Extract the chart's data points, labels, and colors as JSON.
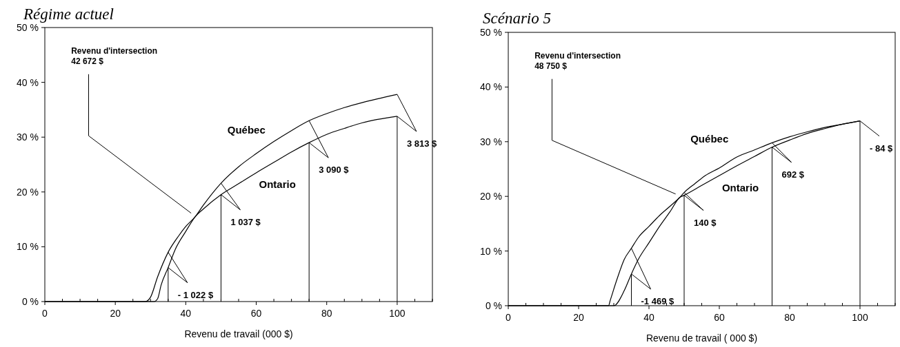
{
  "chart_data": [
    {
      "type": "line",
      "title": "Régime actuel",
      "xlabel": "Revenu de travail (000 $)",
      "xlim": [
        0,
        110
      ],
      "ylim": [
        0,
        50
      ],
      "xticks": [
        0,
        {
          "value": 5,
          "label": null
        },
        {
          "value": 10,
          "label": null
        },
        {
          "value": 15,
          "label": null
        },
        20,
        {
          "value": 25,
          "label": null
        },
        {
          "value": 30,
          "label": null
        },
        {
          "value": 35,
          "label": null
        },
        40,
        {
          "value": 45,
          "label": null
        },
        {
          "value": 50,
          "label": null
        },
        {
          "value": 55,
          "label": null
        },
        60,
        {
          "value": 65,
          "label": null
        },
        {
          "value": 70,
          "label": null
        },
        {
          "value": 75,
          "label": null
        },
        80,
        {
          "value": 85,
          "label": null
        },
        {
          "value": 90,
          "label": null
        },
        {
          "value": 95,
          "label": null
        },
        100,
        {
          "value": 105,
          "label": null
        },
        {
          "value": 110,
          "label": null
        }
      ],
      "yticks": [
        {
          "value": 0,
          "label": "0 %"
        },
        {
          "value": 10,
          "label": "10 %"
        },
        {
          "value": 20,
          "label": "20 %"
        },
        {
          "value": 30,
          "label": "30 %"
        },
        {
          "value": 40,
          "label": "40 %"
        },
        {
          "value": 50,
          "label": "50 %"
        }
      ],
      "series": [
        {
          "name": "Québec",
          "color": "#000000",
          "x": [
            0,
            28.5,
            30,
            32,
            35,
            38,
            40,
            42.7,
            45,
            50,
            55,
            60,
            65,
            70,
            75,
            80,
            85,
            90,
            100
          ],
          "values": [
            0,
            0,
            0.8,
            4.5,
            9,
            12,
            13.7,
            15.5,
            17.6,
            21.6,
            24.6,
            27,
            29.2,
            31.2,
            33,
            34.3,
            35.4,
            36.3,
            37.8
          ]
        },
        {
          "name": "Ontario",
          "color": "#000000",
          "x": [
            0,
            31,
            32,
            33,
            35,
            37,
            40,
            42.7,
            45,
            50,
            55,
            60,
            65,
            70,
            75,
            80,
            85,
            90,
            100
          ],
          "values": [
            0,
            0,
            0.5,
            3,
            6.2,
            9.5,
            12.8,
            15.5,
            16.9,
            19.5,
            21.5,
            23.5,
            25.4,
            27.3,
            29,
            30.5,
            31.6,
            32.6,
            33.8
          ]
        }
      ],
      "ref_lines": [
        {
          "axis": "x",
          "value": 35
        },
        {
          "axis": "x",
          "value": 50
        },
        {
          "axis": "x",
          "value": 75
        },
        {
          "axis": "x",
          "value": 100
        }
      ],
      "annotations": [
        {
          "text": "Revenu d'intersection\n42 672 $",
          "x": 42.7,
          "y": 15.5
        },
        {
          "text": "- 1 022 $",
          "x": 35,
          "y": 6.2
        },
        {
          "text": "1 037 $",
          "x": 50,
          "y": 19.5
        },
        {
          "text": "3 090 $",
          "x": 75,
          "y": 29
        },
        {
          "text": "3 813 $",
          "x": 100,
          "y": 33.8
        }
      ]
    },
    {
      "type": "line",
      "title": "Scénario 5",
      "xlabel": "Revenu de travail ( 000 $)",
      "xlim": [
        0,
        110
      ],
      "ylim": [
        0,
        50
      ],
      "xticks": [
        0,
        {
          "value": 5,
          "label": null
        },
        {
          "value": 10,
          "label": null
        },
        {
          "value": 15,
          "label": null
        },
        20,
        {
          "value": 25,
          "label": null
        },
        {
          "value": 30,
          "label": null
        },
        {
          "value": 35,
          "label": null
        },
        40,
        {
          "value": 45,
          "label": null
        },
        {
          "value": 50,
          "label": null
        },
        {
          "value": 55,
          "label": null
        },
        60,
        {
          "value": 65,
          "label": null
        },
        {
          "value": 70,
          "label": null
        },
        {
          "value": 75,
          "label": null
        },
        80,
        {
          "value": 85,
          "label": null
        },
        {
          "value": 90,
          "label": null
        },
        {
          "value": 95,
          "label": null
        },
        100,
        {
          "value": 105,
          "label": null
        },
        {
          "value": 110,
          "label": null
        }
      ],
      "yticks": [
        {
          "value": 0,
          "label": "0 %"
        },
        {
          "value": 10,
          "label": "10 %"
        },
        {
          "value": 20,
          "label": "20 %"
        },
        {
          "value": 30,
          "label": "30 %"
        },
        {
          "value": 40,
          "label": "40 %"
        },
        {
          "value": 50,
          "label": "50 %"
        }
      ],
      "series": [
        {
          "name": "Québec",
          "color": "#000000",
          "x": [
            0,
            28.5,
            29,
            31,
            33,
            35,
            37,
            40,
            43,
            46,
            48.75,
            50,
            53,
            56,
            60,
            65,
            70,
            75,
            80,
            85,
            90,
            95,
            100
          ],
          "values": [
            0,
            0,
            1,
            5,
            8.5,
            10.5,
            12.5,
            14.5,
            16.5,
            18.2,
            19.8,
            20.7,
            22.3,
            23.8,
            25.2,
            27.2,
            28.5,
            29.8,
            30.9,
            31.8,
            32.6,
            33.2,
            33.8
          ]
        },
        {
          "name": "Ontario",
          "color": "#000000",
          "x": [
            0,
            30,
            33,
            35,
            37,
            40,
            43,
            46,
            48.75,
            50,
            55,
            60,
            65,
            70,
            75,
            80,
            85,
            90,
            95,
            100
          ],
          "values": [
            0,
            0,
            2.8,
            5.8,
            8.5,
            11.5,
            14.5,
            17.2,
            19.8,
            20.2,
            22,
            23.8,
            25.6,
            27.3,
            29,
            30.3,
            31.5,
            32.4,
            33.2,
            33.8
          ]
        }
      ],
      "ref_lines": [
        {
          "axis": "x",
          "value": 35
        },
        {
          "axis": "x",
          "value": 50
        },
        {
          "axis": "x",
          "value": 75
        },
        {
          "axis": "x",
          "value": 100
        }
      ],
      "annotations": [
        {
          "text": "Revenu d'intersection\n48 750 $",
          "x": 48.75,
          "y": 19.8
        },
        {
          "text": "-1 469 $",
          "x": 35,
          "y": 5.8
        },
        {
          "text": "140 $",
          "x": 50,
          "y": 20.2
        },
        {
          "text": "692 $",
          "x": 75,
          "y": 29
        },
        {
          "text": "- 84 $",
          "x": 100,
          "y": 33.8
        }
      ]
    }
  ]
}
